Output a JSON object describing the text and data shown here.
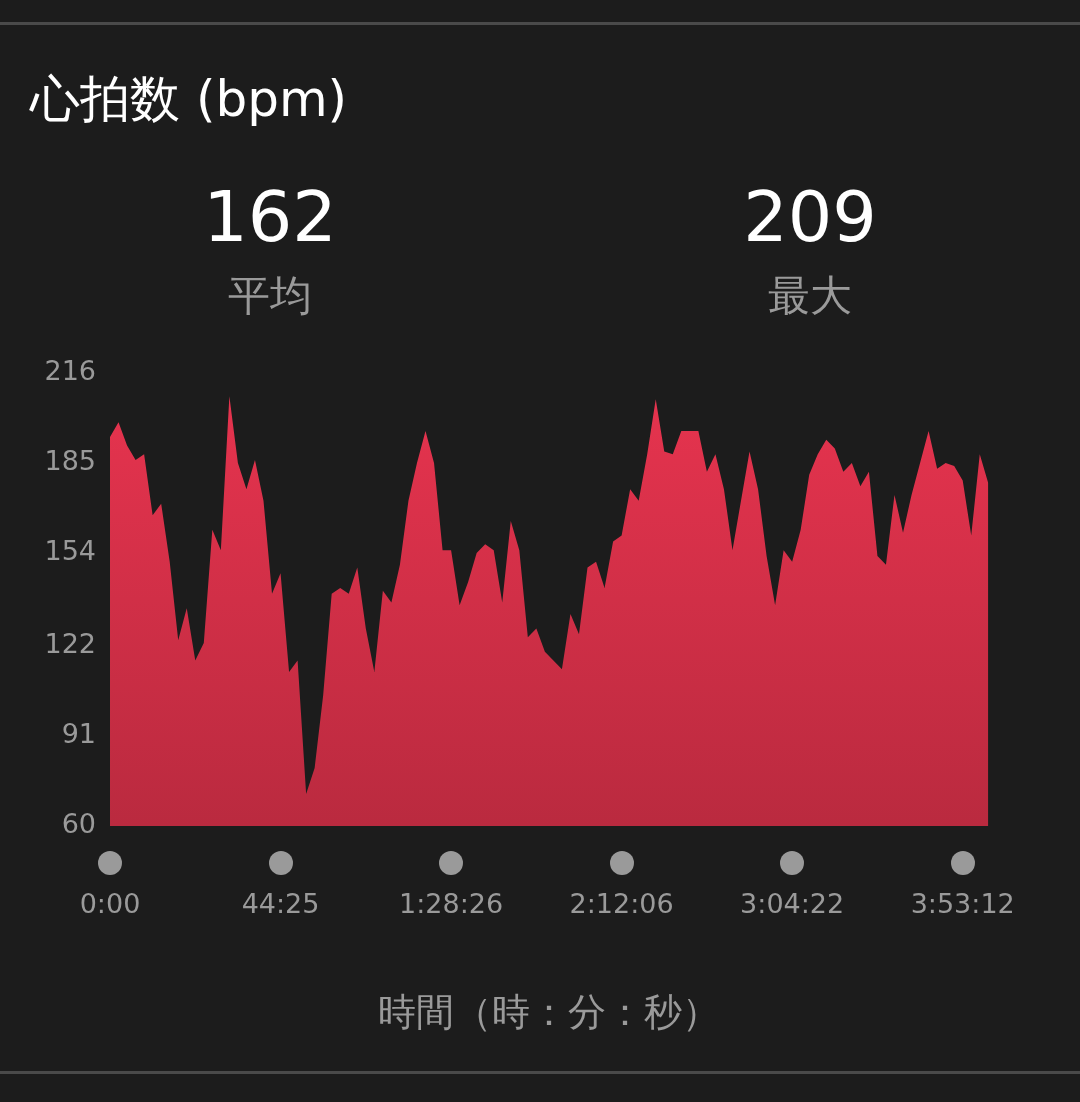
{
  "chart_data": {
    "type": "area",
    "title": "心拍数 (bpm)",
    "xlabel": "時間（時：分：秒）",
    "annotations": [
      "162",
      "平均",
      "209",
      "最大"
    ],
    "categories": [
      "0:00",
      null,
      null,
      null,
      null,
      null,
      null,
      null,
      null,
      null,
      null,
      null,
      null,
      null,
      null,
      null,
      null,
      null,
      null,
      null,
      "44:25",
      null,
      null,
      null,
      null,
      null,
      null,
      null,
      null,
      null,
      null,
      null,
      null,
      null,
      null,
      null,
      null,
      null,
      null,
      null,
      "1:28:26",
      null,
      null,
      null,
      null,
      null,
      null,
      null,
      null,
      null,
      null,
      null,
      null,
      null,
      null,
      null,
      null,
      null,
      null,
      null,
      "2:12:06",
      null,
      null,
      null,
      null,
      null,
      null,
      null,
      null,
      null,
      null,
      null,
      null,
      null,
      null,
      null,
      null,
      null,
      null,
      null,
      "3:04:22",
      null,
      null,
      null,
      null,
      null,
      null,
      null,
      null,
      null,
      null,
      null,
      null,
      null,
      null,
      null,
      null,
      null,
      null,
      null,
      "3:53:12",
      null,
      null,
      null
    ],
    "series": [
      {
        "color": "#e8344f",
        "values": [
          194,
          199,
          191,
          186,
          188,
          167,
          171,
          151,
          124,
          135,
          117,
          123,
          162,
          155,
          208,
          185,
          176,
          186,
          172,
          140,
          147,
          113,
          117,
          71,
          80,
          105,
          140,
          142,
          140,
          149,
          128,
          113,
          141,
          137,
          150,
          172,
          185,
          196,
          185,
          155,
          155,
          136,
          144,
          154,
          157,
          155,
          137,
          165,
          155,
          125,
          128,
          120,
          117,
          114,
          133,
          126,
          149,
          151,
          142,
          158,
          160,
          176,
          172,
          188,
          207,
          189,
          188,
          196,
          196,
          196,
          182,
          188,
          176,
          155,
          172,
          189,
          176,
          153,
          136,
          155,
          151,
          162,
          181,
          188,
          193,
          190,
          182,
          185,
          177,
          182,
          153,
          150,
          174,
          161,
          174,
          185,
          196,
          183,
          185,
          184,
          179,
          160,
          188,
          178
        ]
      }
    ],
    "ylim": [
      60,
      216
    ],
    "yticks": [
      60,
      91,
      122,
      154,
      185,
      216
    ],
    "grid": false,
    "legend": false
  }
}
